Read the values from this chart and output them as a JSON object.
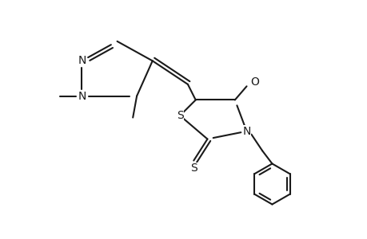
{
  "bg_color": "#ffffff",
  "line_color": "#1a1a1a",
  "text_color": "#1a1a1a",
  "line_width": 1.5,
  "font_size": 10,
  "figsize": [
    4.6,
    3.0
  ],
  "dpi": 100,
  "xlim": [
    0,
    9.2
  ],
  "ylim": [
    0,
    6.0
  ]
}
